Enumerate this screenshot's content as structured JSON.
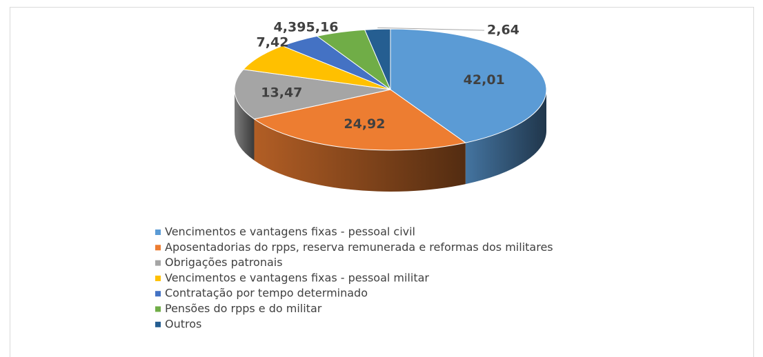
{
  "chart_data": {
    "type": "pie",
    "categories": [
      "Vencimentos e vantagens fixas - pessoal civil",
      "Aposentadorias do rpps, reserva remunerada e reformas dos militares",
      "Obrigações patronais",
      "Vencimentos e vantagens fixas - pessoal militar",
      "Contratação por tempo determinado",
      "Pensões do rpps e do militar",
      "Outros"
    ],
    "values": [
      42.01,
      24.92,
      13.47,
      7.42,
      4.39,
      5.16,
      2.64
    ],
    "value_labels": [
      "42,01",
      "24,92",
      "13,47",
      "7,42",
      "4,39",
      "5,16",
      "2,64"
    ],
    "colors": [
      "#5b9bd5",
      "#ed7d31",
      "#a5a5a5",
      "#ffc000",
      "#4472c4",
      "#70ad47",
      "#255e91"
    ],
    "legend": "bottom"
  }
}
